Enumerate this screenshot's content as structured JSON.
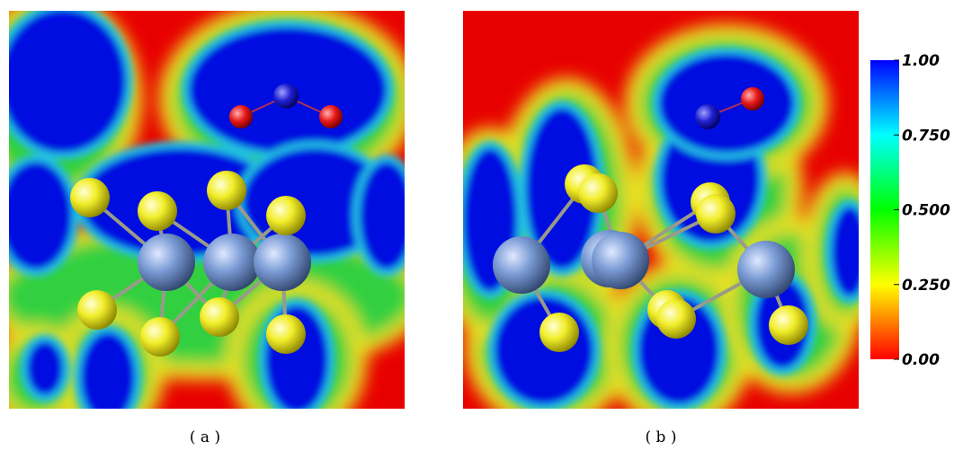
{
  "panels": [
    {
      "label": "( a )"
    },
    {
      "label": "( b )"
    }
  ],
  "colorbar": {
    "lim": [
      0,
      1
    ],
    "ticks": [
      {
        "value": 1,
        "label": "1.00"
      },
      {
        "value": 0.75,
        "label": "0.750"
      },
      {
        "value": 0.5,
        "label": "0.500"
      },
      {
        "value": 0.25,
        "label": "0.250"
      },
      {
        "value": 0,
        "label": "0.00"
      }
    ],
    "colors": [
      "#ff0000",
      "#ffff00",
      "#00ff00",
      "#00ffff",
      "#0000ff"
    ]
  }
}
